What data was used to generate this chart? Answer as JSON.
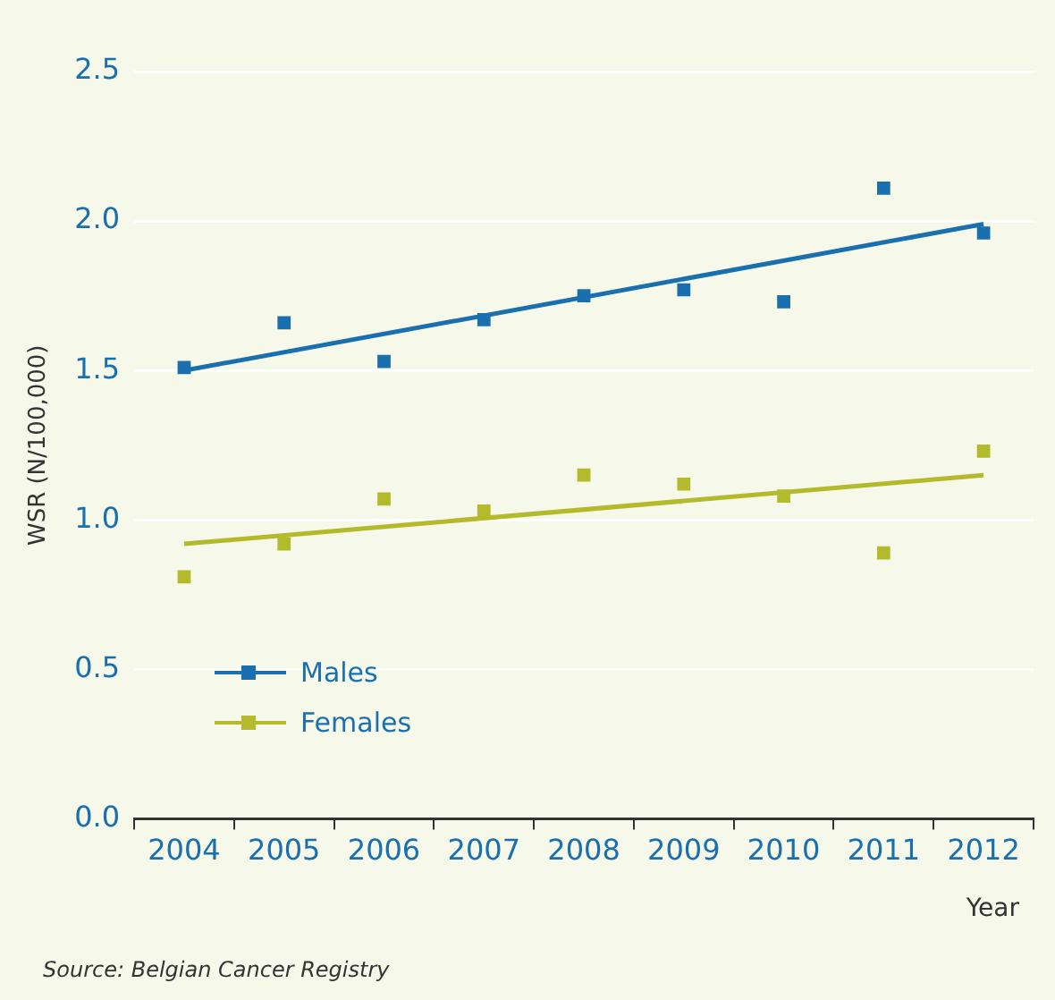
{
  "chart_data": {
    "type": "scatter",
    "xlabel": "Year",
    "ylabel": "WSR (N/100,000)",
    "categories": [
      "2004",
      "2005",
      "2006",
      "2007",
      "2008",
      "2009",
      "2010",
      "2011",
      "2012"
    ],
    "series": [
      {
        "name": "Males",
        "color": "#1a6faf",
        "values": [
          1.51,
          1.66,
          1.53,
          1.67,
          1.75,
          1.77,
          1.73,
          2.11,
          1.96
        ]
      },
      {
        "name": "Females",
        "color": "#b3bb2c",
        "values": [
          0.81,
          0.92,
          1.07,
          1.03,
          1.15,
          1.12,
          1.08,
          0.89,
          1.23
        ]
      },
      {
        "color": "#1a6faf",
        "type": "line",
        "marker": "none",
        "values": [
          1.5,
          null,
          null,
          null,
          null,
          null,
          null,
          null,
          1.99
        ]
      },
      {
        "color": "#b3bb2c",
        "type": "line",
        "marker": "none",
        "values": [
          0.92,
          null,
          null,
          null,
          null,
          null,
          null,
          null,
          1.15
        ]
      }
    ],
    "ylim": [
      0,
      2.5
    ],
    "yticks": [
      {
        "value": 0,
        "label": "0.0"
      },
      {
        "value": 0.5,
        "label": "0.5"
      },
      {
        "value": 1,
        "label": "1.0"
      },
      {
        "value": 1.5,
        "label": "1.5"
      },
      {
        "value": 2,
        "label": "2.0"
      },
      {
        "value": 2.5,
        "label": "2.5"
      }
    ],
    "grid": "y",
    "legend": "bottom left",
    "marker": "square",
    "line_style": "solid",
    "annotations": [
      "Source: Belgian Cancer Registry"
    ]
  }
}
